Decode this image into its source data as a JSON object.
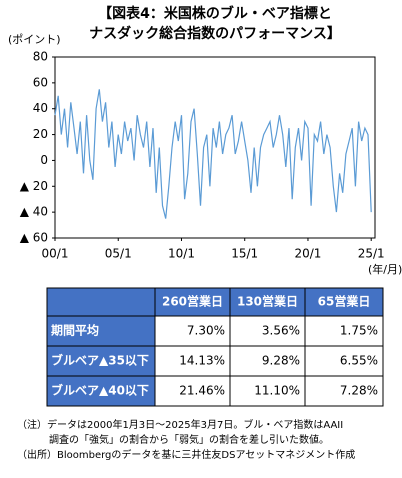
{
  "chart_data": {
    "type": "line",
    "title": [
      "【図表4：米国株のブル・ベア指標と",
      "ナスダック総合指数のパフォーマンス】"
    ],
    "y_label": "(ポイント)",
    "x_label": "(年/月)",
    "xlim": [
      2000,
      2025.3
    ],
    "ylim": [
      -60,
      80
    ],
    "xticks": [
      {
        "value": 2000,
        "label": "00/1"
      },
      {
        "value": 2005,
        "label": "05/1"
      },
      {
        "value": 2010,
        "label": "10/1"
      },
      {
        "value": 2015,
        "label": "15/1"
      },
      {
        "value": 2020,
        "label": "20/1"
      },
      {
        "value": 2025,
        "label": "25/1"
      }
    ],
    "yticks": [
      80,
      60,
      40,
      20,
      0,
      {
        "value": -20,
        "label": "▲ 20"
      },
      {
        "value": -40,
        "label": "▲ 40"
      },
      {
        "value": -60,
        "label": "▲ 60"
      }
    ],
    "color": "#5b9bd5",
    "x": [
      2000,
      2000.25,
      2000.5,
      2000.75,
      2001,
      2001.25,
      2001.5,
      2001.75,
      2002,
      2002.25,
      2002.5,
      2002.75,
      2003,
      2003.25,
      2003.5,
      2003.75,
      2004,
      2004.25,
      2004.5,
      2004.75,
      2005,
      2005.25,
      2005.5,
      2005.75,
      2006,
      2006.25,
      2006.5,
      2006.75,
      2007,
      2007.25,
      2007.5,
      2007.75,
      2008,
      2008.25,
      2008.5,
      2008.75,
      2009,
      2009.25,
      2009.5,
      2009.75,
      2010,
      2010.25,
      2010.5,
      2010.75,
      2011,
      2011.25,
      2011.5,
      2011.75,
      2012,
      2012.25,
      2012.5,
      2012.75,
      2013,
      2013.25,
      2013.5,
      2013.75,
      2014,
      2014.25,
      2014.5,
      2014.75,
      2015,
      2015.25,
      2015.5,
      2015.75,
      2016,
      2016.25,
      2016.5,
      2016.75,
      2017,
      2017.25,
      2017.5,
      2017.75,
      2018,
      2018.25,
      2018.5,
      2018.75,
      2019,
      2019.25,
      2019.5,
      2019.75,
      2020,
      2020.25,
      2020.5,
      2020.75,
      2021,
      2021.25,
      2021.5,
      2021.75,
      2022,
      2022.25,
      2022.5,
      2022.75,
      2023,
      2023.25,
      2023.5,
      2023.75,
      2024,
      2024.25,
      2024.5,
      2024.75,
      2025
    ],
    "values": [
      35,
      50,
      20,
      40,
      10,
      45,
      25,
      5,
      30,
      -10,
      35,
      0,
      -15,
      40,
      55,
      30,
      45,
      10,
      30,
      -5,
      20,
      5,
      30,
      15,
      25,
      0,
      35,
      20,
      10,
      30,
      -5,
      25,
      -25,
      10,
      -35,
      -45,
      -20,
      10,
      30,
      15,
      35,
      -30,
      -10,
      30,
      40,
      5,
      -35,
      10,
      20,
      -20,
      25,
      10,
      30,
      5,
      20,
      25,
      35,
      5,
      15,
      30,
      15,
      0,
      -25,
      10,
      -20,
      10,
      20,
      25,
      30,
      10,
      20,
      35,
      20,
      -5,
      25,
      -30,
      10,
      25,
      0,
      30,
      25,
      -35,
      20,
      15,
      30,
      5,
      20,
      10,
      -20,
      -40,
      -10,
      -25,
      5,
      15,
      25,
      -20,
      30,
      15,
      25,
      20,
      -40
    ]
  },
  "table": {
    "header": [
      "260営業日",
      "130営業日",
      "65営業日"
    ],
    "rows": [
      [
        "期間平均",
        "7.30%",
        "3.56%",
        "1.75%"
      ],
      [
        "ブルベア▲35以下",
        "14.13%",
        "9.28%",
        "6.55%"
      ],
      [
        "ブルベア▲40以下",
        "21.46%",
        "11.10%",
        "7.28%"
      ]
    ]
  },
  "notes": [
    "（注）データは2000年1月3日～2025年3月7日。ブル・ベア指数はAAII",
    "調査の「強気」の割合から「弱気」の割合を差し引いた数値。",
    "（出所）Bloombergのデータを基に三井住友DSアセットマネジメント作成"
  ]
}
